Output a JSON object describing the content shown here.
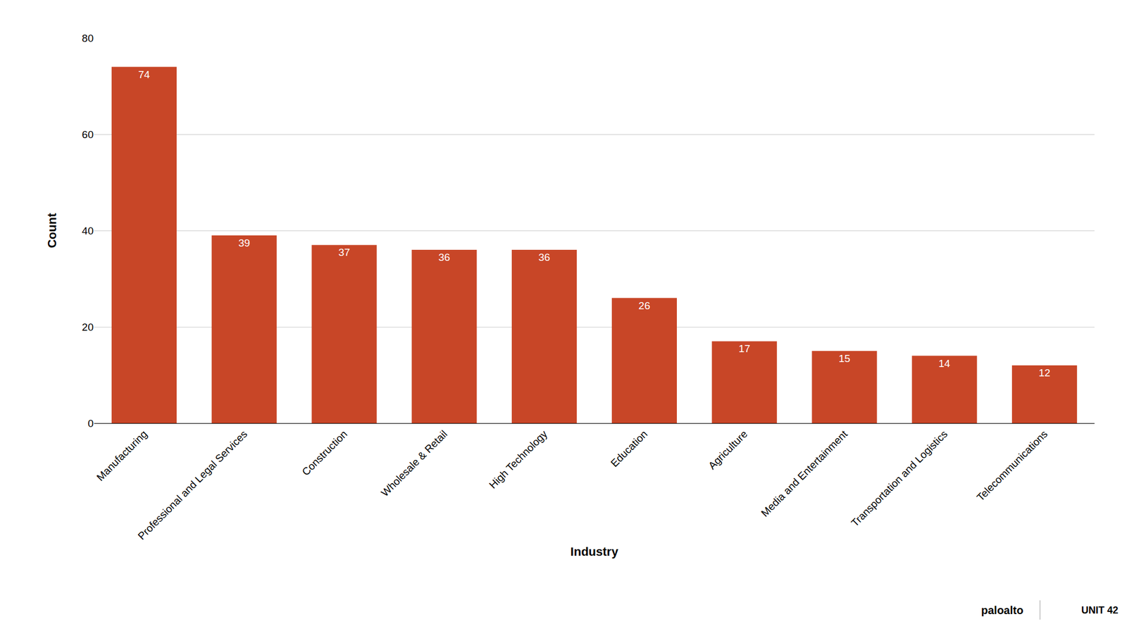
{
  "chart_data": {
    "type": "bar",
    "x_label": "Industry",
    "y_label": "Count",
    "categories": [
      "Manufacturing",
      "Professional and Legal Services",
      "Construction",
      "Wholesale & Retail",
      "High Technology",
      "Education",
      "Agriculture",
      "Media and Entertainment",
      "Transportation and Logistics",
      "Telecommunications"
    ],
    "values": [
      74,
      39,
      37,
      36,
      36,
      26,
      17,
      15,
      14,
      12
    ],
    "color": "#c84627",
    "ylim": [
      0,
      80
    ],
    "yticks": [
      0,
      20,
      40,
      60,
      80
    ],
    "grid": true,
    "data_labels": true,
    "annotations": [
      "paloalto",
      "UNIT 42"
    ]
  }
}
